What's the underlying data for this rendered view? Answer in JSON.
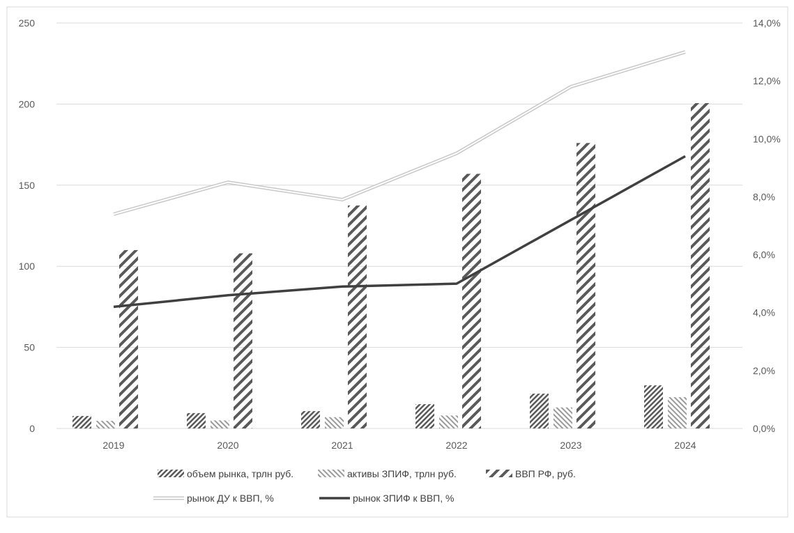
{
  "chart_data": {
    "type": "bar",
    "title": "",
    "categories": [
      "2019",
      "2020",
      "2021",
      "2022",
      "2023",
      "2024"
    ],
    "left_axis": {
      "ylim": [
        0,
        250
      ],
      "ticks": [
        "0",
        "50",
        "100",
        "150",
        "200",
        "250"
      ],
      "tick_values": [
        0,
        50,
        100,
        150,
        200,
        250
      ]
    },
    "right_axis": {
      "ylim": [
        0,
        14
      ],
      "ticks": [
        "0,0%",
        "2,0%",
        "4,0%",
        "6,0%",
        "8,0%",
        "10,0%",
        "12,0%",
        "14,0%"
      ],
      "tick_values": [
        0,
        2,
        4,
        6,
        8,
        10,
        12,
        14
      ]
    },
    "grid": true,
    "legend_position": "bottom",
    "bar_series": [
      {
        "name": "объем рынка, трлн руб.",
        "axis": "left",
        "pattern": "dense-backslash",
        "values": [
          7.7,
          9.5,
          10.7,
          15,
          21.5,
          26.6
        ]
      },
      {
        "name": "активы ЗПИФ, трлн руб.",
        "axis": "left",
        "pattern": "light-slash",
        "values": [
          4.7,
          5,
          7,
          8,
          13,
          19.3
        ]
      },
      {
        "name": "ВВП РФ, руб.",
        "axis": "left",
        "pattern": "wide-backslash",
        "values": [
          110,
          108,
          137.5,
          157,
          176,
          200.6
        ]
      }
    ],
    "line_series": [
      {
        "name": "рынок ДУ к ВВП, %",
        "axis": "right",
        "style": "double-light",
        "values": [
          7.4,
          8.5,
          7.9,
          9.5,
          11.8,
          13.0
        ]
      },
      {
        "name": "рынок ЗПИФ к ВВП, %",
        "axis": "right",
        "style": "solid-dark",
        "values": [
          4.2,
          4.6,
          4.9,
          5.0,
          7.2,
          9.4
        ]
      }
    ],
    "colors": {
      "grid": "#d9d9d9",
      "bar": "#595959",
      "line_dark": "#404040",
      "line_light": "#d0d0d0"
    }
  }
}
